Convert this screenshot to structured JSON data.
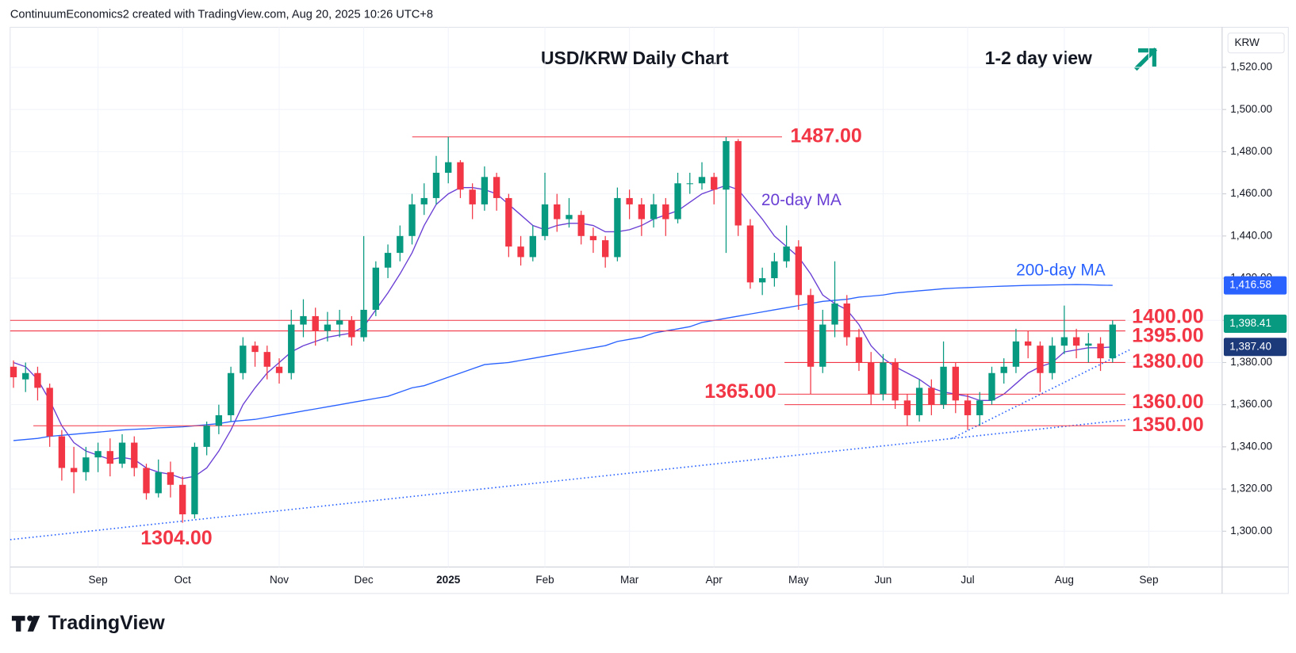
{
  "header": "ContinuumEconomics2 created with TradingView.com, Aug 20, 2025 10:26 UTC+8",
  "brand": "TradingView",
  "chart_data": {
    "type": "candlestick",
    "title": "USD/KRW Daily Chart",
    "subtitle": "1-2 day view",
    "currency": "KRW",
    "up_color": "#089981",
    "down_color": "#f23645",
    "categories": [
      null,
      null,
      null,
      null,
      null,
      null,
      null,
      "Sep",
      null,
      null,
      null,
      null,
      null,
      null,
      "Oct",
      null,
      null,
      null,
      null,
      null,
      null,
      null,
      "Nov",
      null,
      null,
      null,
      null,
      null,
      null,
      "Dec",
      null,
      null,
      null,
      null,
      null,
      null,
      "2025",
      null,
      null,
      null,
      null,
      null,
      null,
      null,
      "Feb",
      null,
      null,
      null,
      null,
      null,
      null,
      "Mar",
      null,
      null,
      null,
      null,
      null,
      null,
      "Apr",
      null,
      null,
      null,
      null,
      null,
      null,
      "May",
      null,
      null,
      null,
      null,
      null,
      null,
      "Jun",
      null,
      null,
      null,
      null,
      null,
      null,
      "Jul",
      null,
      null,
      null,
      null,
      null,
      null,
      null,
      "Aug",
      null,
      null,
      null,
      null,
      null,
      null,
      "Sep"
    ],
    "open": [
      1378,
      1372,
      1375,
      1368,
      1345,
      1330,
      1328,
      1335,
      1338,
      1332,
      1342,
      1330,
      1318,
      1328,
      1322,
      1308,
      1340,
      1350,
      1355,
      1375,
      1388,
      1385,
      1378,
      1375,
      1398,
      1402,
      1395,
      1398,
      1400,
      1392,
      1405,
      1425,
      1432,
      1440,
      1455,
      1458,
      1470,
      1475,
      1462,
      1455,
      1468,
      1458,
      1435,
      1430,
      1440,
      1455,
      1448,
      1450,
      1440,
      1438,
      1430,
      1458,
      1455,
      1448,
      1455,
      1448,
      1465,
      1465,
      1468,
      1462,
      1485,
      1445,
      1418,
      1420,
      1428,
      1435,
      1412,
      1378,
      1398,
      1408,
      1392,
      1380,
      1365,
      1380,
      1362,
      1355,
      1368,
      1360,
      1378,
      1362,
      1355,
      1362,
      1375,
      1378,
      1390,
      1388,
      1375,
      1388,
      1392,
      1388,
      1389,
      1382,
      null,
      null,
      null
    ],
    "high": [
      1381,
      1380,
      1378,
      1370,
      1348,
      1340,
      1340,
      1342,
      1344,
      1346,
      1345,
      1332,
      1334,
      1333,
      1326,
      1342,
      1352,
      1360,
      1378,
      1392,
      1390,
      1388,
      1382,
      1405,
      1410,
      1406,
      1404,
      1405,
      1402,
      1440,
      1428,
      1436,
      1445,
      1460,
      1465,
      1478,
      1487,
      1476,
      1465,
      1473,
      1470,
      1460,
      1440,
      1445,
      1470,
      1460,
      1458,
      1452,
      1444,
      1440,
      1463,
      1462,
      1458,
      1460,
      1458,
      1470,
      1470,
      1475,
      1470,
      1487,
      1486,
      1448,
      1425,
      1432,
      1445,
      1438,
      1415,
      1405,
      1428,
      1412,
      1396,
      1385,
      1384,
      1382,
      1365,
      1372,
      1372,
      1390,
      1380,
      1365,
      1366,
      1378,
      1382,
      1396,
      1395,
      1390,
      1392,
      1407,
      1396,
      1394,
      1392,
      1400,
      null,
      null,
      null
    ],
    "low": [
      1368,
      1366,
      1362,
      1340,
      1324,
      1318,
      1324,
      1328,
      1326,
      1330,
      1326,
      1315,
      1316,
      1316,
      1304,
      1306,
      1336,
      1346,
      1352,
      1372,
      1378,
      1372,
      1370,
      1372,
      1392,
      1388,
      1390,
      1392,
      1388,
      1390,
      1402,
      1420,
      1428,
      1436,
      1450,
      1455,
      1465,
      1458,
      1448,
      1452,
      1452,
      1430,
      1426,
      1428,
      1438,
      1442,
      1444,
      1436,
      1432,
      1425,
      1428,
      1448,
      1440,
      1444,
      1440,
      1446,
      1460,
      1462,
      1455,
      1432,
      1440,
      1415,
      1412,
      1416,
      1425,
      1405,
      1365,
      1375,
      1392,
      1388,
      1376,
      1360,
      1362,
      1358,
      1350,
      1352,
      1355,
      1358,
      1356,
      1348,
      1350,
      1360,
      1370,
      1375,
      1382,
      1366,
      1372,
      1384,
      1382,
      1380,
      1376,
      1380,
      null,
      null,
      null
    ],
    "close": [
      1373,
      1375,
      1368,
      1345,
      1330,
      1328,
      1335,
      1338,
      1332,
      1342,
      1330,
      1318,
      1328,
      1322,
      1308,
      1340,
      1350,
      1355,
      1375,
      1388,
      1385,
      1378,
      1375,
      1398,
      1402,
      1395,
      1398,
      1400,
      1392,
      1405,
      1425,
      1432,
      1440,
      1455,
      1458,
      1470,
      1475,
      1462,
      1455,
      1468,
      1458,
      1435,
      1430,
      1440,
      1455,
      1448,
      1450,
      1440,
      1438,
      1430,
      1458,
      1455,
      1448,
      1455,
      1448,
      1465,
      1465,
      1468,
      1462,
      1485,
      1445,
      1418,
      1420,
      1428,
      1435,
      1412,
      1378,
      1398,
      1408,
      1392,
      1380,
      1365,
      1380,
      1362,
      1355,
      1368,
      1360,
      1378,
      1362,
      1355,
      1362,
      1375,
      1378,
      1390,
      1388,
      1375,
      1388,
      1392,
      1388,
      1389,
      1382,
      1398,
      null,
      null,
      null
    ],
    "series": [
      {
        "name": "20-day MA",
        "color": "#6a3fd4",
        "values": [
          1380,
          1378,
          1372,
          1362,
          1350,
          1342,
          1338,
          1336,
          1334,
          1335,
          1334,
          1330,
          1328,
          1327,
          1325,
          1326,
          1330,
          1338,
          1348,
          1360,
          1368,
          1375,
          1380,
          1385,
          1388,
          1390,
          1392,
          1393,
          1394,
          1397,
          1405,
          1413,
          1422,
          1432,
          1445,
          1455,
          1460,
          1463,
          1463,
          1462,
          1460,
          1455,
          1450,
          1445,
          1443,
          1445,
          1446,
          1446,
          1445,
          1442,
          1442,
          1443,
          1445,
          1448,
          1450,
          1452,
          1456,
          1460,
          1462,
          1464,
          1462,
          1455,
          1448,
          1440,
          1435,
          1430,
          1422,
          1412,
          1408,
          1405,
          1398,
          1388,
          1382,
          1378,
          1375,
          1372,
          1368,
          1366,
          1365,
          1364,
          1362,
          1362,
          1365,
          1370,
          1375,
          1378,
          1380,
          1385,
          1386,
          1387,
          1387,
          1387.4,
          null,
          null,
          null
        ]
      },
      {
        "name": "200-day MA",
        "color": "#2962ff",
        "values": [
          1343,
          1343.5,
          1344,
          1345,
          1345.5,
          1346,
          1346.5,
          1347,
          1347.5,
          1348,
          1348.3,
          1348.6,
          1349,
          1349.2,
          1349.5,
          1350,
          1350.5,
          1351,
          1352,
          1352.5,
          1353,
          1354,
          1355,
          1356,
          1357,
          1358,
          1359,
          1360,
          1361,
          1362,
          1363,
          1364,
          1366,
          1368,
          1369,
          1371,
          1373,
          1375,
          1377,
          1379,
          1379.5,
          1380,
          1381,
          1382,
          1383,
          1384,
          1385,
          1386,
          1387,
          1388,
          1390,
          1391,
          1392,
          1394,
          1395,
          1396,
          1397,
          1399,
          1400,
          1401,
          1402,
          1403,
          1404,
          1405,
          1406,
          1407,
          1408,
          1409,
          1409.5,
          1410,
          1411,
          1411.5,
          1412,
          1413,
          1413.5,
          1414,
          1414.5,
          1415,
          1415.3,
          1415.5,
          1415.8,
          1416,
          1416.2,
          1416.4,
          1416.6,
          1416.7,
          1416.8,
          1416.9,
          1417,
          1416.9,
          1416.7,
          1416.6,
          null,
          null,
          null
        ]
      }
    ],
    "levels": [
      {
        "value": 1487,
        "label": "1487.00"
      },
      {
        "value": 1400,
        "label": "1400.00"
      },
      {
        "value": 1395,
        "label": "1395.00"
      },
      {
        "value": 1380,
        "label": "1380.00"
      },
      {
        "value": 1365,
        "label": "1365.00"
      },
      {
        "value": 1360,
        "label": "1360.00"
      },
      {
        "value": 1350,
        "label": "1350.00"
      }
    ],
    "low_label": {
      "value": 1304,
      "label": "1304.00"
    },
    "level_color": "#f23645",
    "trendlines": [
      {
        "start": [
          -0.27,
          1296
        ],
        "end": [
          92.4,
          1353
        ]
      },
      {
        "start": [
          77.7,
          1344
        ],
        "end": [
          92.4,
          1386
        ]
      }
    ],
    "price_tags": [
      {
        "value": 1416.58,
        "label": "1,416.58",
        "color": "#2962ff"
      },
      {
        "value": 1398.41,
        "label": "1,398.41",
        "color": "#089981"
      },
      {
        "value": 1387.4,
        "label": "1,387.40",
        "color": "#1c3a7a"
      }
    ],
    "ylim": [
      1283,
      1539
    ],
    "yticks": [
      {
        "value": 1300,
        "label": "1,300.00"
      },
      {
        "value": 1320,
        "label": "1,320.00"
      },
      {
        "value": 1340,
        "label": "1,340.00"
      },
      {
        "value": 1360,
        "label": "1,360.00"
      },
      {
        "value": 1380,
        "label": "1,380.00"
      },
      {
        "value": 1400,
        "label": "1,400.00"
      },
      {
        "value": 1420,
        "label": "1,420.00"
      },
      {
        "value": 1440,
        "label": "1,440.00"
      },
      {
        "value": 1460,
        "label": "1,460.00"
      },
      {
        "value": 1480,
        "label": "1,480.00"
      },
      {
        "value": 1500,
        "label": "1,500.00"
      },
      {
        "value": 1520,
        "label": "1,520.00"
      }
    ],
    "grid": true
  }
}
